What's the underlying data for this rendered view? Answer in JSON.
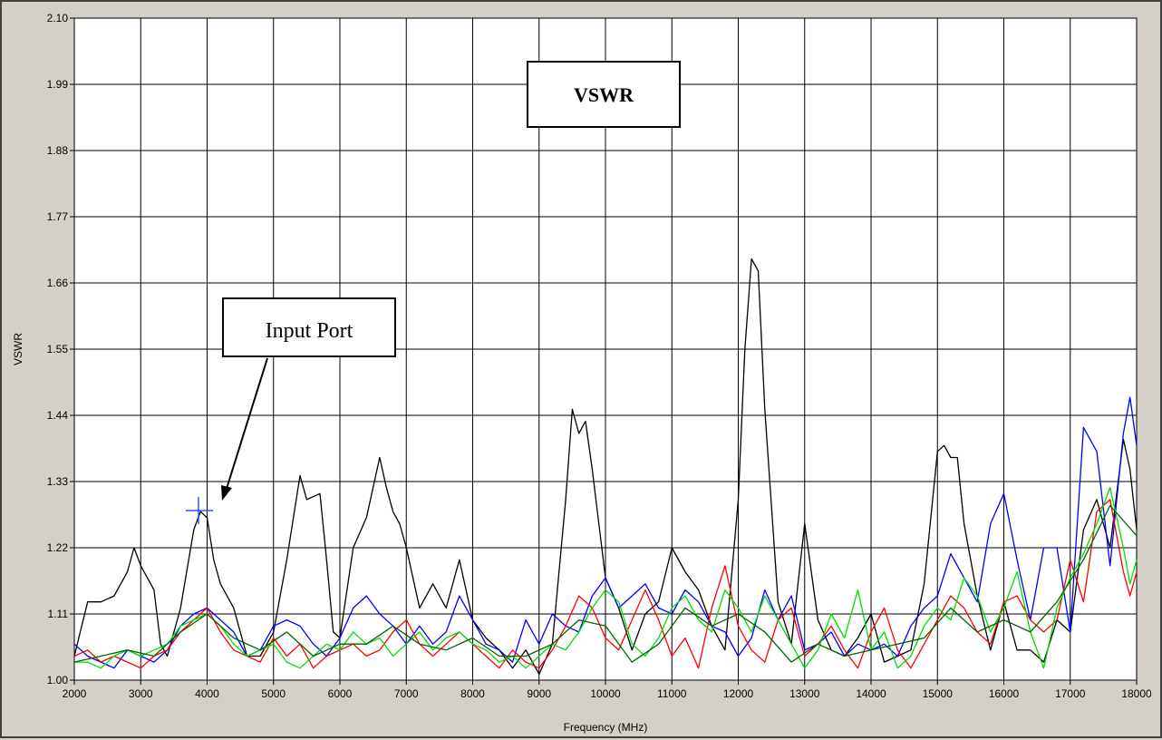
{
  "chart_data": {
    "type": "line",
    "title": "VSWR",
    "xlabel": "Frequency (MHz)",
    "ylabel": "VSWR",
    "xlim": [
      2000,
      18000
    ],
    "ylim": [
      1.0,
      2.1
    ],
    "grid": true,
    "x_ticks": [
      2000,
      3000,
      4000,
      5000,
      6000,
      7000,
      8000,
      9000,
      10000,
      11000,
      12000,
      13000,
      14000,
      15000,
      16000,
      17000,
      18000
    ],
    "x_tick_labels": [
      "2000",
      "3000",
      "4000",
      "5000",
      "6000",
      "7000",
      "8000",
      "9000",
      "10000",
      "11000",
      "12000",
      "13000",
      "14000",
      "15000",
      "16000",
      "17000",
      "18000"
    ],
    "y_ticks": [
      1.0,
      1.11,
      1.22,
      1.33,
      1.44,
      1.55,
      1.66,
      1.77,
      1.88,
      1.99,
      2.1
    ],
    "y_tick_labels": [
      "1.00",
      "1.11",
      "1.22",
      "1.33",
      "1.44",
      "1.55",
      "1.66",
      "1.77",
      "1.88",
      "1.99",
      "2.10"
    ],
    "annotations": [
      {
        "text": "Input Port",
        "points_to": {
          "x": 3900,
          "y": 1.28
        }
      },
      {
        "text": "VSWR"
      }
    ],
    "series_colors": [
      "#000000",
      "#0000ff",
      "#ff0000",
      "#00dd00",
      "#006400"
    ],
    "series": [
      {
        "x": [
          2000,
          2200,
          2400,
          2600,
          2800,
          2900,
          3000,
          3200,
          3300,
          3400,
          3600,
          3800,
          3900,
          4000,
          4100,
          4200,
          4400,
          4600,
          4800,
          5000,
          5200,
          5400,
          5500,
          5700,
          5800,
          5900,
          6000,
          6200,
          6400,
          6600,
          6700,
          6800,
          6900,
          7000,
          7200,
          7400,
          7600,
          7800,
          8000,
          8200,
          8400,
          8600,
          8800,
          9000,
          9200,
          9400,
          9500,
          9600,
          9700,
          9800,
          10000,
          10200,
          10400,
          10600,
          10800,
          11000,
          11200,
          11400,
          11600,
          11800,
          12000,
          12100,
          12200,
          12300,
          12400,
          12600,
          12800,
          12900,
          13000,
          13200,
          13400,
          13600,
          13800,
          14000,
          14200,
          14400,
          14600,
          14800,
          15000,
          15100,
          15200,
          15300,
          15400,
          15600,
          15800,
          16000,
          16200,
          16400,
          16600,
          16800,
          17000,
          17200,
          17400,
          17600,
          17800,
          17900,
          18000
        ],
        "y": [
          1.04,
          1.13,
          1.13,
          1.14,
          1.18,
          1.22,
          1.19,
          1.15,
          1.06,
          1.04,
          1.12,
          1.25,
          1.28,
          1.27,
          1.2,
          1.16,
          1.12,
          1.04,
          1.04,
          1.08,
          1.2,
          1.34,
          1.3,
          1.31,
          1.2,
          1.08,
          1.07,
          1.22,
          1.27,
          1.37,
          1.32,
          1.28,
          1.26,
          1.22,
          1.12,
          1.16,
          1.12,
          1.2,
          1.1,
          1.07,
          1.05,
          1.02,
          1.05,
          1.01,
          1.06,
          1.3,
          1.45,
          1.41,
          1.43,
          1.35,
          1.17,
          1.12,
          1.05,
          1.11,
          1.13,
          1.22,
          1.18,
          1.15,
          1.09,
          1.05,
          1.3,
          1.55,
          1.7,
          1.68,
          1.45,
          1.13,
          1.06,
          1.16,
          1.26,
          1.1,
          1.05,
          1.04,
          1.07,
          1.11,
          1.03,
          1.04,
          1.05,
          1.16,
          1.38,
          1.39,
          1.37,
          1.37,
          1.26,
          1.14,
          1.05,
          1.13,
          1.05,
          1.05,
          1.03,
          1.1,
          1.08,
          1.25,
          1.3,
          1.22,
          1.4,
          1.35,
          1.25
        ]
      },
      {
        "x": [
          2000,
          2200,
          2400,
          2600,
          2800,
          3000,
          3200,
          3400,
          3600,
          3800,
          4000,
          4200,
          4400,
          4600,
          4800,
          5000,
          5200,
          5400,
          5600,
          5800,
          6000,
          6200,
          6400,
          6600,
          6800,
          7000,
          7200,
          7400,
          7600,
          7800,
          8000,
          8200,
          8400,
          8600,
          8800,
          9000,
          9200,
          9400,
          9600,
          9800,
          10000,
          10200,
          10400,
          10600,
          10800,
          11000,
          11200,
          11400,
          11600,
          11800,
          12000,
          12200,
          12400,
          12600,
          12800,
          13000,
          13200,
          13400,
          13600,
          13800,
          14000,
          14200,
          14400,
          14600,
          14800,
          15000,
          15200,
          15400,
          15600,
          15800,
          16000,
          16200,
          16400,
          16600,
          16800,
          17000,
          17200,
          17400,
          17600,
          17800,
          17900,
          18000
        ],
        "y": [
          1.06,
          1.04,
          1.03,
          1.02,
          1.05,
          1.04,
          1.03,
          1.05,
          1.09,
          1.11,
          1.12,
          1.1,
          1.08,
          1.04,
          1.05,
          1.09,
          1.1,
          1.09,
          1.06,
          1.04,
          1.07,
          1.12,
          1.14,
          1.11,
          1.09,
          1.06,
          1.09,
          1.06,
          1.08,
          1.14,
          1.1,
          1.06,
          1.05,
          1.03,
          1.1,
          1.06,
          1.11,
          1.09,
          1.08,
          1.14,
          1.17,
          1.12,
          1.14,
          1.16,
          1.12,
          1.11,
          1.15,
          1.13,
          1.09,
          1.08,
          1.04,
          1.07,
          1.15,
          1.1,
          1.14,
          1.05,
          1.06,
          1.08,
          1.04,
          1.06,
          1.05,
          1.06,
          1.04,
          1.09,
          1.12,
          1.14,
          1.21,
          1.17,
          1.13,
          1.26,
          1.31,
          1.2,
          1.1,
          1.22,
          1.22,
          1.08,
          1.42,
          1.38,
          1.19,
          1.41,
          1.47,
          1.39
        ]
      },
      {
        "x": [
          2000,
          2200,
          2400,
          2600,
          2800,
          3000,
          3200,
          3400,
          3600,
          3800,
          4000,
          4200,
          4400,
          4600,
          4800,
          5000,
          5200,
          5400,
          5600,
          5800,
          6000,
          6200,
          6400,
          6600,
          6800,
          7000,
          7200,
          7400,
          7600,
          7800,
          8000,
          8200,
          8400,
          8600,
          8800,
          9000,
          9200,
          9400,
          9600,
          9800,
          10000,
          10200,
          10400,
          10600,
          10800,
          11000,
          11200,
          11400,
          11600,
          11800,
          12000,
          12200,
          12400,
          12600,
          12800,
          13000,
          13200,
          13400,
          13600,
          13800,
          14000,
          14200,
          14400,
          14600,
          14800,
          15000,
          15200,
          15400,
          15600,
          15800,
          16000,
          16200,
          16400,
          16600,
          16800,
          17000,
          17200,
          17400,
          17600,
          17800,
          17900,
          18000
        ],
        "y": [
          1.04,
          1.05,
          1.03,
          1.04,
          1.03,
          1.02,
          1.04,
          1.05,
          1.08,
          1.1,
          1.12,
          1.08,
          1.05,
          1.04,
          1.03,
          1.07,
          1.04,
          1.06,
          1.02,
          1.04,
          1.05,
          1.06,
          1.04,
          1.05,
          1.08,
          1.1,
          1.06,
          1.04,
          1.06,
          1.08,
          1.06,
          1.04,
          1.02,
          1.05,
          1.03,
          1.02,
          1.05,
          1.09,
          1.14,
          1.12,
          1.07,
          1.05,
          1.1,
          1.15,
          1.1,
          1.04,
          1.07,
          1.02,
          1.12,
          1.19,
          1.09,
          1.05,
          1.03,
          1.1,
          1.12,
          1.04,
          1.06,
          1.09,
          1.05,
          1.02,
          1.08,
          1.12,
          1.05,
          1.02,
          1.06,
          1.1,
          1.14,
          1.12,
          1.08,
          1.06,
          1.13,
          1.14,
          1.1,
          1.08,
          1.1,
          1.2,
          1.13,
          1.28,
          1.3,
          1.18,
          1.14,
          1.18
        ]
      },
      {
        "x": [
          2000,
          2200,
          2400,
          2600,
          2800,
          3000,
          3200,
          3400,
          3600,
          3800,
          4000,
          4200,
          4400,
          4600,
          4800,
          5000,
          5200,
          5400,
          5600,
          5800,
          6000,
          6200,
          6400,
          6600,
          6800,
          7000,
          7200,
          7400,
          7600,
          7800,
          8000,
          8200,
          8400,
          8600,
          8800,
          9000,
          9200,
          9400,
          9600,
          9800,
          10000,
          10200,
          10400,
          10600,
          10800,
          11000,
          11200,
          11400,
          11600,
          11800,
          12000,
          12200,
          12400,
          12600,
          12800,
          13000,
          13200,
          13400,
          13600,
          13800,
          14000,
          14200,
          14400,
          14600,
          14800,
          15000,
          15200,
          15400,
          15600,
          15800,
          16000,
          16200,
          16400,
          16600,
          16800,
          17000,
          17200,
          17400,
          17600,
          17800,
          17900,
          18000
        ],
        "y": [
          1.03,
          1.03,
          1.02,
          1.04,
          1.05,
          1.04,
          1.05,
          1.06,
          1.09,
          1.1,
          1.11,
          1.09,
          1.06,
          1.04,
          1.05,
          1.06,
          1.03,
          1.02,
          1.04,
          1.06,
          1.05,
          1.08,
          1.06,
          1.07,
          1.04,
          1.06,
          1.08,
          1.05,
          1.07,
          1.08,
          1.06,
          1.05,
          1.03,
          1.04,
          1.02,
          1.04,
          1.06,
          1.05,
          1.08,
          1.12,
          1.15,
          1.13,
          1.06,
          1.04,
          1.07,
          1.12,
          1.14,
          1.1,
          1.08,
          1.15,
          1.12,
          1.08,
          1.14,
          1.1,
          1.06,
          1.02,
          1.05,
          1.11,
          1.07,
          1.15,
          1.05,
          1.08,
          1.02,
          1.04,
          1.09,
          1.12,
          1.1,
          1.17,
          1.14,
          1.08,
          1.12,
          1.18,
          1.08,
          1.02,
          1.12,
          1.17,
          1.21,
          1.26,
          1.32,
          1.22,
          1.16,
          1.2
        ]
      },
      {
        "x": [
          2000,
          2400,
          2800,
          3200,
          3600,
          4000,
          4400,
          4800,
          5200,
          5600,
          6000,
          6400,
          6800,
          7200,
          7600,
          8000,
          8400,
          8800,
          9200,
          9600,
          10000,
          10400,
          10800,
          11200,
          11600,
          12000,
          12400,
          12800,
          13200,
          13600,
          14000,
          14400,
          14800,
          15200,
          15600,
          16000,
          16400,
          16800,
          17200,
          17600,
          18000
        ],
        "y": [
          1.03,
          1.04,
          1.05,
          1.04,
          1.08,
          1.11,
          1.07,
          1.05,
          1.08,
          1.04,
          1.06,
          1.06,
          1.09,
          1.06,
          1.05,
          1.07,
          1.04,
          1.04,
          1.06,
          1.1,
          1.09,
          1.03,
          1.06,
          1.12,
          1.09,
          1.11,
          1.08,
          1.03,
          1.06,
          1.04,
          1.05,
          1.06,
          1.07,
          1.12,
          1.08,
          1.1,
          1.08,
          1.13,
          1.2,
          1.29,
          1.24
        ]
      }
    ]
  }
}
